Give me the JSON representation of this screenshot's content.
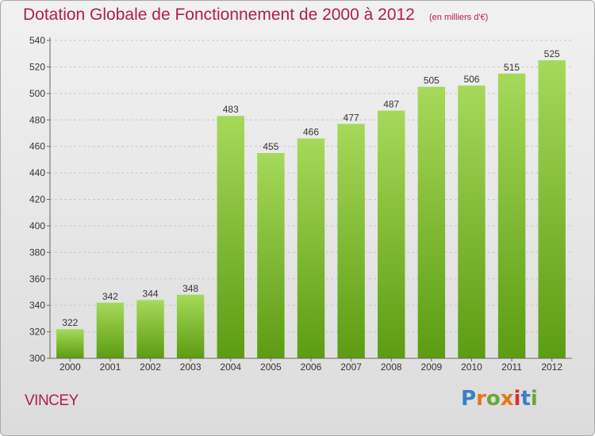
{
  "header": {
    "title": "Dotation Globale de Fonctionnement de 2000 à 2012",
    "subtitle": "(en milliers d'€)"
  },
  "footer": {
    "commune": "VINCEY",
    "logo_text": "Proxiti",
    "logo_colors": [
      "#3a7fc2",
      "#e8751a",
      "#6aa83a",
      "#e8751a",
      "#d9332a",
      "#3a7fc2",
      "#6aa83a"
    ]
  },
  "colors": {
    "title": "#b01d50",
    "bar_light": "#a6d95a",
    "bar_dark": "#5c9c12",
    "grid": "#c8c8c8"
  },
  "chart_data": {
    "type": "bar",
    "title": "Dotation Globale de Fonctionnement de 2000 à 2012",
    "subtitle": "(en milliers d'€)",
    "xlabel": "",
    "ylabel": "",
    "categories": [
      "2000",
      "2001",
      "2002",
      "2003",
      "2004",
      "2005",
      "2006",
      "2007",
      "2008",
      "2009",
      "2010",
      "2011",
      "2012"
    ],
    "values": [
      322,
      342,
      344,
      348,
      483,
      455,
      466,
      477,
      487,
      505,
      506,
      515,
      525
    ],
    "ylim": [
      300,
      540
    ],
    "yticks": [
      300,
      320,
      340,
      360,
      380,
      400,
      420,
      440,
      460,
      480,
      500,
      520,
      540
    ],
    "grid": true,
    "legend": "none"
  }
}
